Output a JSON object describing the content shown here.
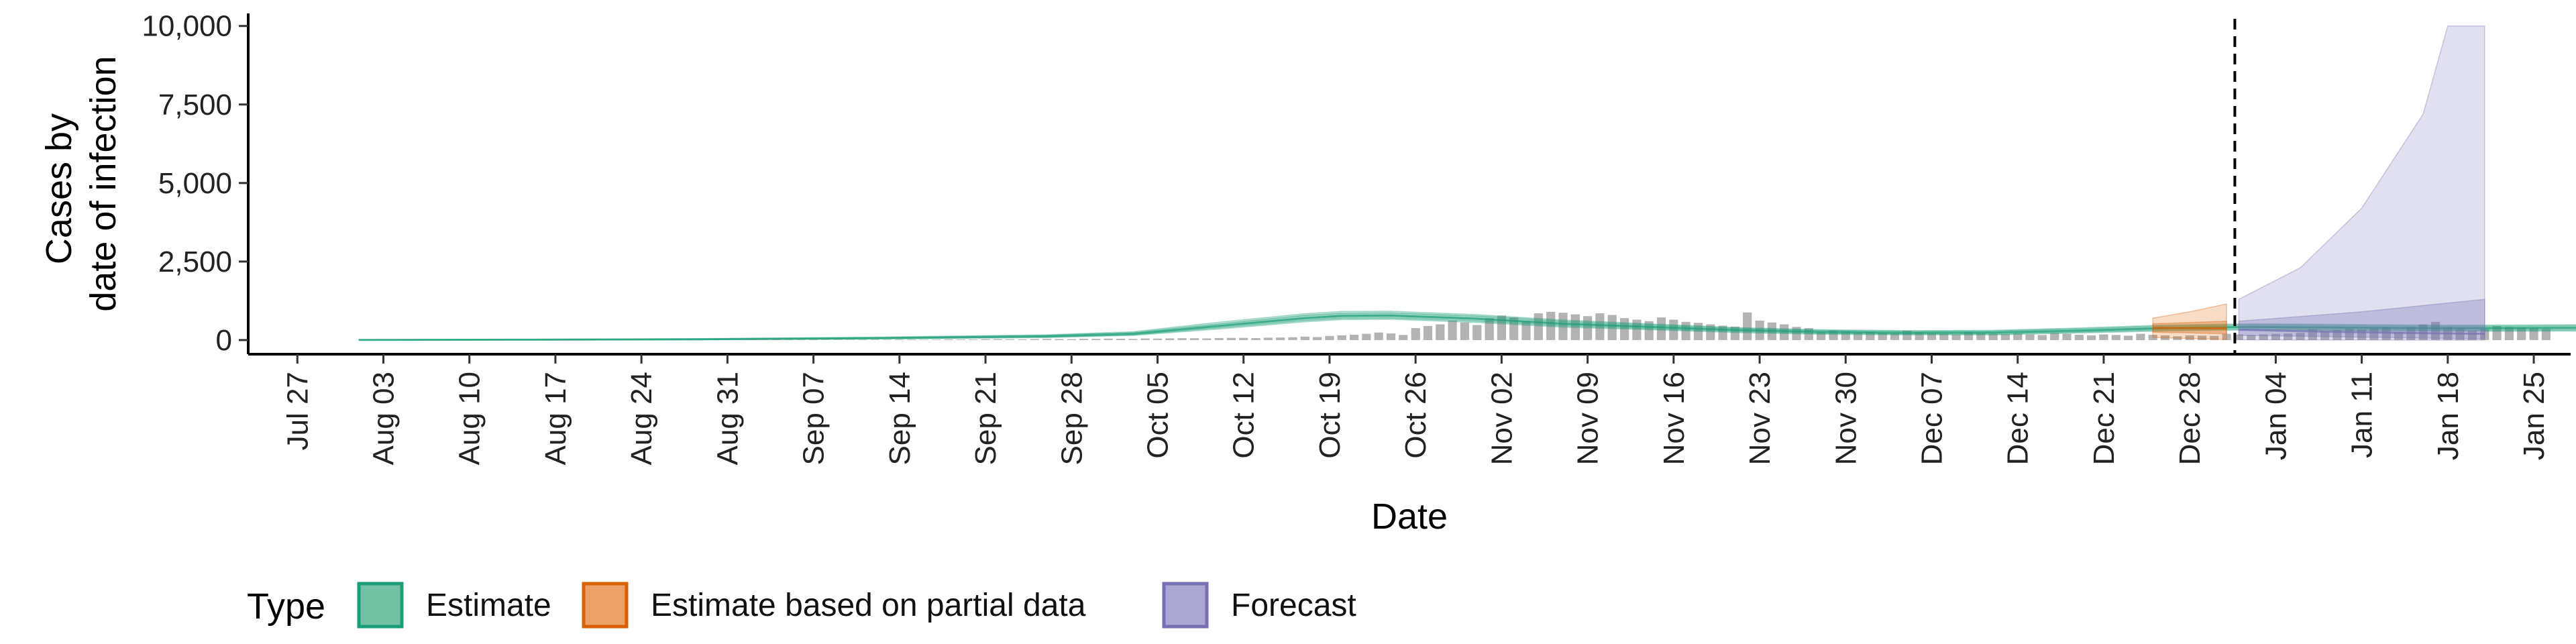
{
  "chart_data": {
    "type": "area",
    "xlabel": "Date",
    "ylabel_lines": [
      "Cases by",
      "date of infection"
    ],
    "x_ticks": [
      "Jul 27",
      "Aug 03",
      "Aug 10",
      "Aug 17",
      "Aug 24",
      "Aug 31",
      "Sep 07",
      "Sep 14",
      "Sep 21",
      "Sep 28",
      "Oct 05",
      "Oct 12",
      "Oct 19",
      "Oct 26",
      "Nov 02",
      "Nov 09",
      "Nov 16",
      "Nov 23",
      "Nov 30",
      "Dec 07",
      "Dec 14",
      "Dec 21",
      "Dec 28",
      "Jan 04",
      "Jan 11",
      "Jan 18",
      "Jan 25"
    ],
    "x_tick_dates": [
      "2020-07-27",
      "2020-08-03",
      "2020-08-10",
      "2020-08-17",
      "2020-08-24",
      "2020-08-31",
      "2020-09-07",
      "2020-09-14",
      "2020-09-21",
      "2020-09-28",
      "2020-10-05",
      "2020-10-12",
      "2020-10-19",
      "2020-10-26",
      "2020-11-02",
      "2020-11-09",
      "2020-11-16",
      "2020-11-23",
      "2020-11-30",
      "2020-12-07",
      "2020-12-14",
      "2020-12-21",
      "2020-12-28",
      "2021-01-04",
      "2021-01-11",
      "2021-01-18",
      "2021-01-25"
    ],
    "y_ticks": [
      0,
      2500,
      5000,
      7500,
      10000
    ],
    "y_tick_labels": [
      "0",
      "2,500",
      "5,000",
      "7,500",
      "10,000"
    ],
    "xlim": [
      "2020-07-23",
      "2021-01-28"
    ],
    "ylim": [
      -450,
      10400
    ],
    "forecast_date": "2021-01-01",
    "legend": {
      "title": "Type",
      "position": "bottom",
      "items": [
        {
          "label": "Estimate",
          "fill": "#73c1a4",
          "stroke": "#1b9e77"
        },
        {
          "label": "Estimate based on partial data",
          "fill": "#eba068",
          "stroke": "#d95f02"
        },
        {
          "label": "Forecast",
          "fill": "#aba6d3",
          "stroke": "#7570b3"
        }
      ]
    },
    "colors": {
      "estimate": "#1b9e77",
      "partial": "#d95f02",
      "forecast": "#7570b3",
      "bars": "#b3b3b3"
    },
    "reported_cases": {
      "start_date": "2020-08-01",
      "values": [
        5,
        8,
        4,
        3,
        6,
        10,
        5,
        4,
        7,
        3,
        5,
        6,
        4,
        8,
        6,
        5,
        3,
        7,
        9,
        4,
        6,
        5,
        8,
        3,
        6,
        4,
        7,
        5,
        9,
        8,
        6,
        4,
        10,
        7,
        12,
        9,
        8,
        15,
        11,
        13,
        10,
        16,
        14,
        12,
        18,
        20,
        15,
        17,
        25,
        22,
        19,
        28,
        30,
        26,
        24,
        33,
        36,
        31,
        29,
        40,
        38,
        45,
        42,
        35,
        50,
        48,
        55,
        60,
        58,
        52,
        65,
        70,
        68,
        62,
        75,
        80,
        90,
        110,
        95,
        130,
        150,
        170,
        200,
        240,
        210,
        160,
        380,
        450,
        500,
        620,
        560,
        480,
        700,
        780,
        720,
        600,
        850,
        900,
        870,
        820,
        760,
        850,
        800,
        700,
        650,
        600,
        720,
        650,
        580,
        550,
        500,
        460,
        430,
        880,
        620,
        560,
        500,
        420,
        380,
        250,
        300,
        280,
        240,
        260,
        230,
        210,
        300,
        250,
        220,
        200,
        180,
        260,
        220,
        200,
        190,
        210,
        180,
        160,
        230,
        200,
        170,
        150,
        180,
        160,
        140,
        200,
        170,
        150,
        120,
        150,
        140,
        130,
        200,
        180,
        160,
        180,
        200,
        210,
        230,
        350,
        280,
        320,
        360,
        340,
        380,
        400,
        250,
        420,
        500,
        580,
        420,
        380,
        300,
        350,
        450,
        420,
        400,
        380,
        350
      ]
    },
    "estimate": {
      "start_date": "2020-08-01",
      "end_date": "2020-12-24",
      "median": [
        [
          0,
          5
        ],
        [
          14,
          12
        ],
        [
          28,
          25
        ],
        [
          42,
          60
        ],
        [
          56,
          120
        ],
        [
          63,
          200
        ],
        [
          70,
          450
        ],
        [
          77,
          700
        ],
        [
          80,
          770
        ],
        [
          84,
          780
        ],
        [
          91,
          680
        ],
        [
          98,
          520
        ],
        [
          105,
          420
        ],
        [
          112,
          320
        ],
        [
          119,
          260
        ],
        [
          126,
          230
        ],
        [
          133,
          240
        ],
        [
          140,
          300
        ],
        [
          147,
          380
        ],
        [
          154,
          420
        ],
        [
          161,
          400
        ],
        [
          168,
          380
        ],
        [
          175,
          380
        ],
        [
          180,
          390
        ],
        [
          185,
          400
        ]
      ],
      "inner": [
        [
          0,
          2,
          10
        ],
        [
          14,
          8,
          18
        ],
        [
          28,
          18,
          35
        ],
        [
          42,
          45,
          80
        ],
        [
          56,
          95,
          150
        ],
        [
          63,
          165,
          240
        ],
        [
          70,
          390,
          520
        ],
        [
          77,
          620,
          790
        ],
        [
          80,
          690,
          860
        ],
        [
          84,
          700,
          870
        ],
        [
          91,
          600,
          770
        ],
        [
          98,
          450,
          600
        ],
        [
          105,
          360,
          490
        ],
        [
          112,
          270,
          380
        ],
        [
          119,
          210,
          310
        ],
        [
          126,
          190,
          280
        ],
        [
          133,
          190,
          290
        ],
        [
          140,
          250,
          360
        ],
        [
          147,
          320,
          450
        ],
        [
          154,
          350,
          490
        ],
        [
          161,
          330,
          470
        ],
        [
          168,
          310,
          450
        ],
        [
          175,
          310,
          450
        ],
        [
          180,
          315,
          460
        ],
        [
          185,
          320,
          470
        ]
      ],
      "outer": [
        [
          0,
          0,
          15
        ],
        [
          14,
          4,
          25
        ],
        [
          28,
          12,
          45
        ],
        [
          42,
          35,
          95
        ],
        [
          56,
          80,
          170
        ],
        [
          63,
          145,
          265
        ],
        [
          70,
          350,
          570
        ],
        [
          77,
          580,
          840
        ],
        [
          80,
          650,
          910
        ],
        [
          84,
          660,
          920
        ],
        [
          91,
          560,
          810
        ],
        [
          98,
          410,
          640
        ],
        [
          105,
          330,
          520
        ],
        [
          112,
          240,
          400
        ],
        [
          119,
          185,
          330
        ],
        [
          126,
          165,
          300
        ],
        [
          133,
          165,
          310
        ],
        [
          140,
          225,
          385
        ],
        [
          147,
          290,
          480
        ],
        [
          154,
          320,
          520
        ],
        [
          161,
          300,
          500
        ],
        [
          168,
          280,
          480
        ],
        [
          175,
          280,
          480
        ],
        [
          180,
          285,
          490
        ],
        [
          185,
          290,
          500
        ]
      ]
    },
    "partial": {
      "start_date": "2020-12-25",
      "end_date": "2020-12-31",
      "median": [
        [
          0,
          390
        ],
        [
          3,
          380
        ],
        [
          6,
          370
        ]
      ],
      "inner": [
        [
          0,
          250,
          520
        ],
        [
          3,
          230,
          560
        ],
        [
          6,
          200,
          600
        ]
      ],
      "outer": [
        [
          0,
          80,
          700
        ],
        [
          3,
          50,
          900
        ],
        [
          6,
          20,
          1150
        ]
      ]
    },
    "forecast": {
      "start_date": "2021-01-01",
      "end_date": "2021-01-21",
      "median": [
        [
          0,
          330
        ],
        [
          5,
          280
        ],
        [
          10,
          250
        ],
        [
          15,
          220
        ],
        [
          20,
          200
        ]
      ],
      "inner": [
        [
          0,
          150,
          600
        ],
        [
          5,
          120,
          750
        ],
        [
          10,
          90,
          900
        ],
        [
          15,
          60,
          1100
        ],
        [
          20,
          40,
          1300
        ]
      ],
      "outer": [
        [
          0,
          10,
          1300
        ],
        [
          5,
          5,
          2300
        ],
        [
          10,
          3,
          4200
        ],
        [
          15,
          1,
          7200
        ],
        [
          17,
          0,
          10000
        ],
        [
          20,
          0,
          10000
        ]
      ]
    }
  }
}
